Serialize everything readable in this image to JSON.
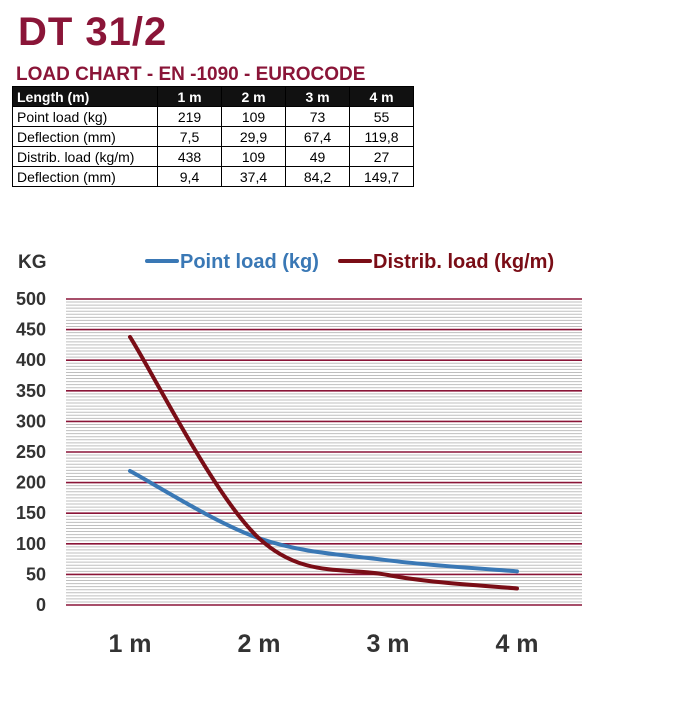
{
  "header": {
    "title": "DT 31/2",
    "subtitle": "LOAD CHART - EN -1090 - EUROCODE"
  },
  "table": {
    "headers": [
      "Length (m)",
      "1 m",
      "2 m",
      "3 m",
      "4 m"
    ],
    "rows": [
      [
        "Point load (kg)",
        "219",
        "109",
        "73",
        "55"
      ],
      [
        "Deflection (mm)",
        "7,5",
        "29,9",
        "67,4",
        "119,8"
      ],
      [
        "Distrib. load (kg/m)",
        "438",
        "109",
        "49",
        "27"
      ],
      [
        "Deflection (mm)",
        "9,4",
        "37,4",
        "84,2",
        "149,7"
      ]
    ]
  },
  "colors": {
    "brand": "#8a1538",
    "point_load": "#3a78b5",
    "distrib_load": "#7a0d16",
    "grid_major": "#8a1538",
    "grid_minor": "#bfbfbf"
  },
  "chart_data": {
    "type": "line",
    "ylabel": "KG",
    "categories": [
      "1 m",
      "2 m",
      "3 m",
      "4 m"
    ],
    "x": [
      1,
      2,
      3,
      4
    ],
    "ylim": [
      0,
      500
    ],
    "yticks": [
      0,
      50,
      100,
      150,
      200,
      250,
      300,
      350,
      400,
      450,
      500
    ],
    "grid": true,
    "legend_position": "top",
    "series": [
      {
        "name": "Point load (kg)",
        "values": [
          219,
          109,
          73,
          55
        ],
        "color": "#3a78b5"
      },
      {
        "name": "Distrib. load (kg/m)",
        "values": [
          438,
          109,
          49,
          27
        ],
        "color": "#7a0d16"
      }
    ]
  }
}
